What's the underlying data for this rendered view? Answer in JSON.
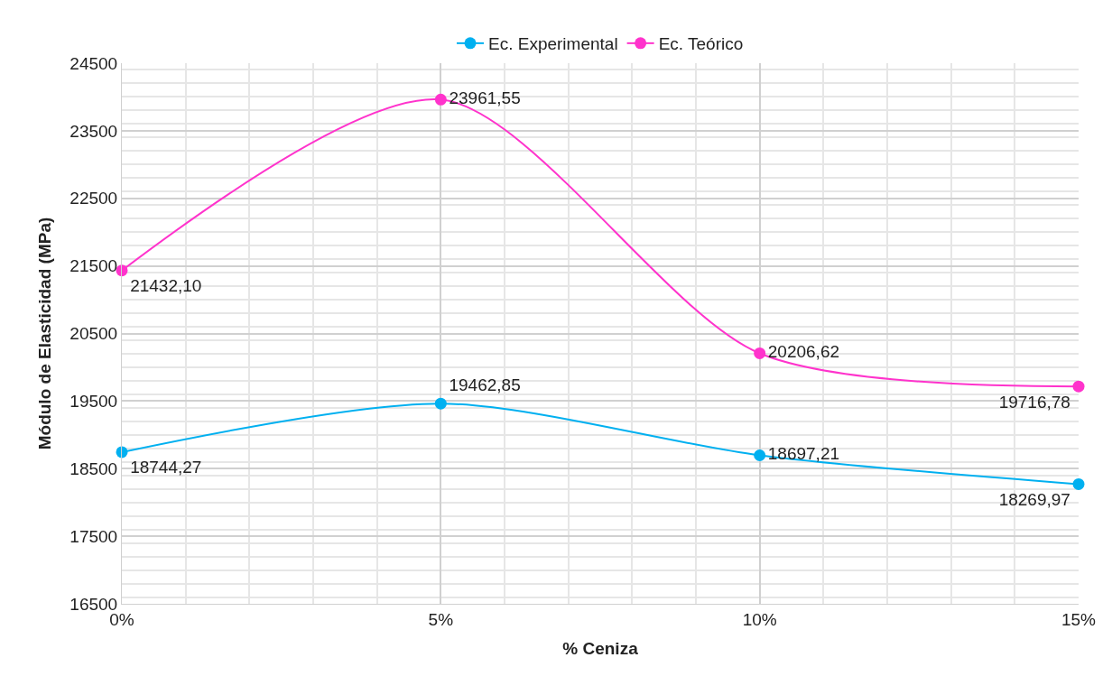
{
  "chart_data": {
    "type": "line",
    "xlabel": "% Ceniza",
    "ylabel": "Módulo de Elasticidad (MPa)",
    "x": [
      0,
      5,
      10,
      15
    ],
    "xlim": [
      0,
      15
    ],
    "xticks": [
      {
        "value": 0,
        "label": "0%"
      },
      {
        "value": 5,
        "label": "5%"
      },
      {
        "value": 10,
        "label": "10%"
      },
      {
        "value": 15,
        "label": "15%"
      }
    ],
    "ylim": [
      16500,
      24500
    ],
    "yticks": [
      16500,
      17500,
      18500,
      19500,
      20500,
      21500,
      22500,
      23500,
      24500
    ],
    "series": [
      {
        "name": "Ec. Experimental",
        "color": "#00b0f0",
        "values": [
          18744.27,
          19462.85,
          18697.21,
          18269.97
        ],
        "value_labels": [
          "18744,27",
          "19462,85",
          "18697,21",
          "18269,97"
        ]
      },
      {
        "name": "Ec. Teórico",
        "color": "#ff33cc",
        "values": [
          21432.1,
          23961.55,
          20206.62,
          19716.78
        ],
        "value_labels": [
          "21432,10",
          "23961,55",
          "20206,62",
          "19716,78"
        ]
      }
    ],
    "grid": true,
    "legend": "top",
    "marker": "circle",
    "line_style": "solid"
  }
}
